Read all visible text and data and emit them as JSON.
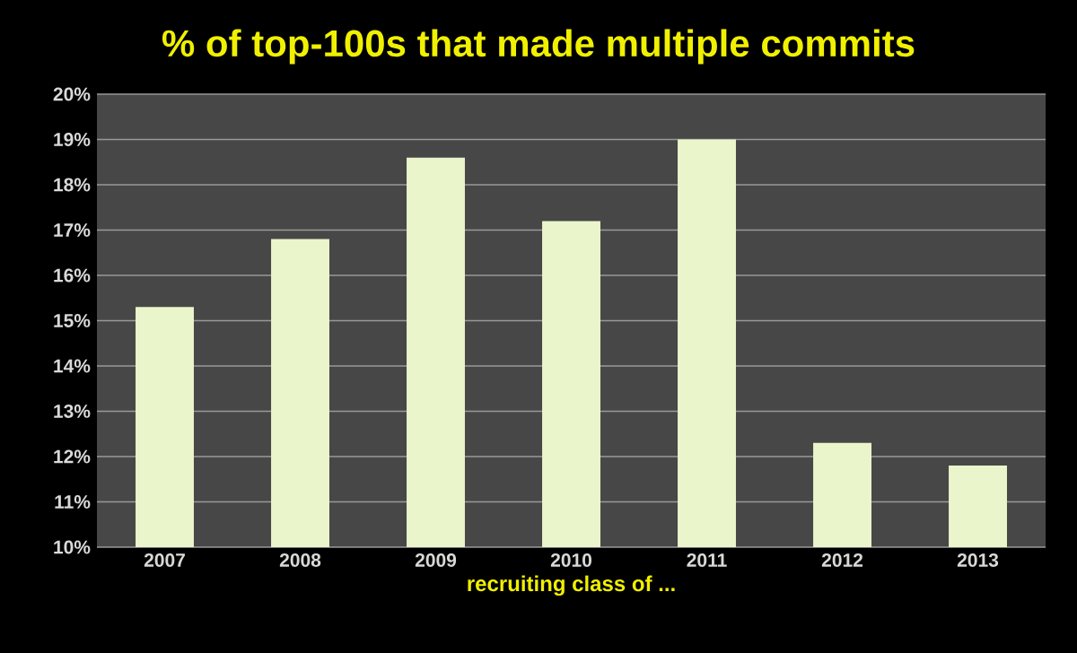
{
  "chart_data": {
    "type": "bar",
    "title": "% of top-100s that made multiple commits",
    "xlabel": "recruiting class of ...",
    "categories": [
      "2007",
      "2008",
      "2009",
      "2010",
      "2011",
      "2012",
      "2013"
    ],
    "values": [
      15.3,
      16.8,
      18.6,
      17.2,
      19.0,
      12.3,
      11.8
    ],
    "color": "#eaf5cc",
    "ylim": [
      10,
      20
    ],
    "yticks": [
      {
        "value": 10,
        "label": "10%"
      },
      {
        "value": 11,
        "label": "11%"
      },
      {
        "value": 12,
        "label": "12%"
      },
      {
        "value": 13,
        "label": "13%"
      },
      {
        "value": 14,
        "label": "14%"
      },
      {
        "value": 15,
        "label": "15%"
      },
      {
        "value": 16,
        "label": "16%"
      },
      {
        "value": 17,
        "label": "17%"
      },
      {
        "value": 18,
        "label": "18%"
      },
      {
        "value": 19,
        "label": "19%"
      },
      {
        "value": 20,
        "label": "20%"
      }
    ],
    "grid": "y"
  }
}
